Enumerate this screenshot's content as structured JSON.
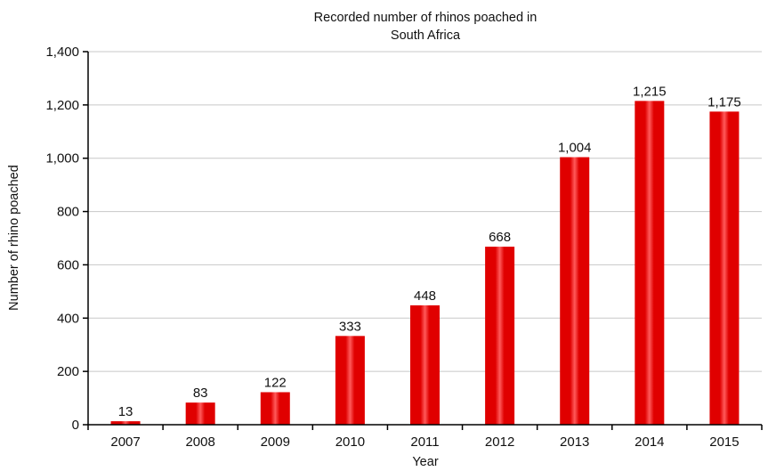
{
  "chart_data": {
    "type": "bar",
    "title_lines": [
      "Recorded number of rhinos poached in",
      "South Africa"
    ],
    "xlabel": "Year",
    "ylabel": "Number of rhino poached",
    "categories": [
      "2007",
      "2008",
      "2009",
      "2010",
      "2011",
      "2012",
      "2013",
      "2014",
      "2015"
    ],
    "values": [
      13,
      83,
      122,
      333,
      448,
      668,
      1004,
      1215,
      1175
    ],
    "value_labels": [
      "13",
      "83",
      "122",
      "333",
      "448",
      "668",
      "1,004",
      "1,215",
      "1,175"
    ],
    "ylim": [
      0,
      1400
    ],
    "yticks": [
      0,
      200,
      400,
      600,
      800,
      1000,
      1200,
      1400
    ],
    "ytick_labels": [
      "0",
      "200",
      "400",
      "600",
      "800",
      "1,000",
      "1,200",
      "1,400"
    ],
    "grid": true,
    "legend": "none",
    "bar_color": "#e00000",
    "bar_highlight_color": "#ff5a5a",
    "grid_color": "#c8c8c8",
    "axis_color": "#000000"
  }
}
